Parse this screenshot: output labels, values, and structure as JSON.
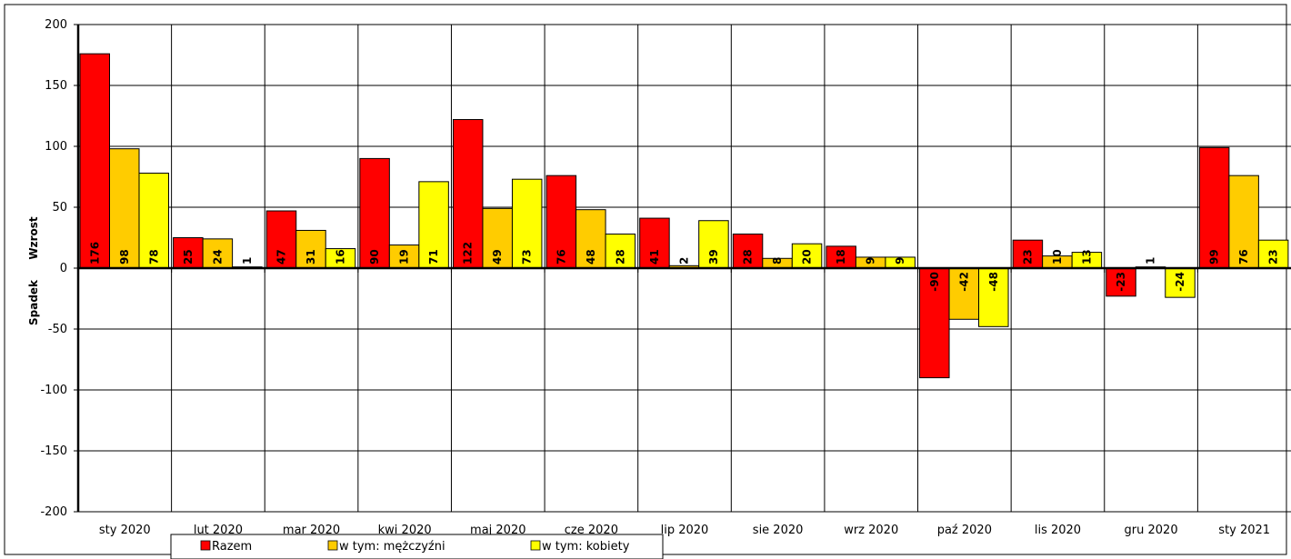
{
  "chart_data": {
    "type": "bar",
    "categories": [
      "sty 2020",
      "lut 2020",
      "mar 2020",
      "kwi 2020",
      "maj 2020",
      "cze 2020",
      "lip 2020",
      "sie 2020",
      "wrz 2020",
      "paź 2020",
      "lis 2020",
      "gru 2020",
      "sty 2021"
    ],
    "series": [
      {
        "name": "Razem",
        "color": "#ff0000",
        "values": [
          176,
          25,
          47,
          90,
          122,
          76,
          41,
          28,
          18,
          -90,
          23,
          -23,
          99
        ]
      },
      {
        "name": "w tym: mężczyźni",
        "color": "#ffcc00",
        "values": [
          98,
          24,
          31,
          19,
          49,
          48,
          2,
          8,
          9,
          -42,
          10,
          1,
          76
        ]
      },
      {
        "name": "w tym: kobiety",
        "color": "#ffff00",
        "values": [
          78,
          1,
          16,
          71,
          73,
          28,
          39,
          20,
          9,
          -48,
          13,
          -24,
          23
        ]
      }
    ],
    "data_labels": [
      [
        "176",
        "98",
        "78"
      ],
      [
        "25",
        "24",
        "1"
      ],
      [
        "47",
        "31",
        "16"
      ],
      [
        "90",
        "19",
        "71"
      ],
      [
        "122",
        "49",
        "73"
      ],
      [
        "76",
        "48",
        "28"
      ],
      [
        "41",
        "2",
        "39"
      ],
      [
        "28",
        "8",
        "20"
      ],
      [
        "18",
        "9",
        "9"
      ],
      [
        "-90",
        "-42",
        "-48"
      ],
      [
        "23",
        "10",
        "13"
      ],
      [
        "-23",
        "1",
        "-24"
      ],
      [
        "99",
        "76",
        "23"
      ]
    ],
    "ylim": [
      -200,
      200
    ],
    "yticks": [
      200,
      150,
      100,
      50,
      0,
      -50,
      -100,
      -150,
      -200
    ],
    "ylabel_top": "Wzrost",
    "ylabel_bottom": "Spadek",
    "grid": true,
    "legend": "bottom"
  }
}
